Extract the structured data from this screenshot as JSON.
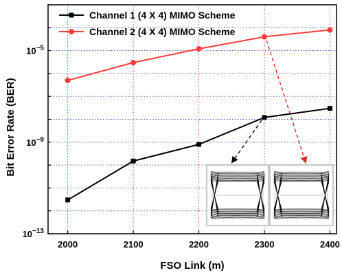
{
  "chart_data": {
    "type": "line",
    "title": "",
    "xlabel": "FSO Link (m)",
    "ylabel": "Bit Error Rate (BER)",
    "x": [
      2000,
      2100,
      2200,
      2300,
      2400
    ],
    "xlim": [
      1970,
      2410
    ],
    "y_scale": "log",
    "ylim": [
      1e-13,
      0.001
    ],
    "y_ticks": [
      {
        "value": 1e-05,
        "base": "10",
        "exp": "−5"
      },
      {
        "value": 1e-09,
        "base": "10",
        "exp": "−9"
      },
      {
        "value": 1e-13,
        "base": "10",
        "exp": "−13"
      }
    ],
    "x_ticks": [
      "2000",
      "2100",
      "2200",
      "2300",
      "2400"
    ],
    "grid": true,
    "legend_position": "top-left",
    "series": [
      {
        "name": "Channel 1  (4 X 4) MIMO Scheme",
        "color": "#000000",
        "marker": "square",
        "values": [
          3e-12,
          1.5e-10,
          8e-10,
          1.2e-08,
          3e-08
        ]
      },
      {
        "name": "Channel 2 (4 X 4) MIMO Scheme",
        "color": "#ff3b3b",
        "marker": "circle",
        "values": [
          5e-07,
          3e-06,
          1.2e-05,
          4e-05,
          8e-05
        ]
      }
    ],
    "annotations": [
      {
        "type": "dashed-arrow",
        "color": "#000000",
        "from_series": 0,
        "from_x": 2300,
        "target": "eye-diagram-1"
      },
      {
        "type": "dashed-arrow",
        "color": "#e02020",
        "from_series": 1,
        "from_x": 2300,
        "target": "eye-diagram-2"
      }
    ],
    "insets": [
      {
        "name": "eye-diagram-1",
        "description": "eye diagram"
      },
      {
        "name": "eye-diagram-2",
        "description": "eye diagram"
      }
    ]
  }
}
